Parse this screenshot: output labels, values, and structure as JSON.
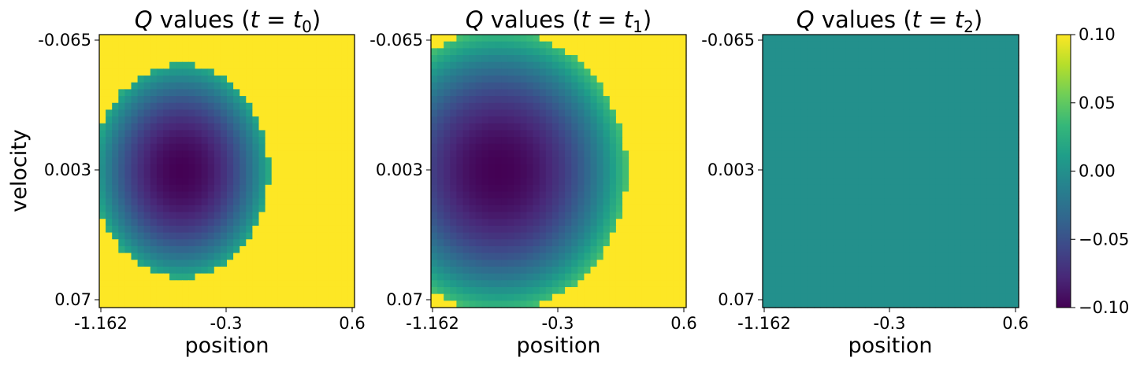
{
  "chart_data": [
    {
      "type": "heatmap",
      "title": {
        "q": "Q",
        "mid": " values (",
        "t": "t",
        "eq": " = ",
        "t2": "t",
        "sub": "0",
        "end": ")"
      },
      "xlabel": "position",
      "ylabel": "velocity",
      "xticks": [
        "-1.162",
        "-0.3",
        "0.6"
      ],
      "yticks": [
        "-0.065",
        "0.003",
        "0.07"
      ],
      "xlim": [
        -1.2,
        0.6
      ],
      "ylim": [
        -0.07,
        0.07
      ],
      "field": {
        "cx": -0.62,
        "cy": 0.0,
        "rx": 0.62,
        "ry": 0.055,
        "min": -0.1,
        "cutoff": 0.022,
        "outside": 0.1
      }
    },
    {
      "type": "heatmap",
      "title": {
        "q": "Q",
        "mid": " values (",
        "t": "t",
        "eq": " = ",
        "t2": "t",
        "sub": "1",
        "end": ")"
      },
      "xlabel": "position",
      "ylabel": "",
      "xticks": [
        "-1.162",
        "-0.3",
        "0.6"
      ],
      "yticks": [
        "-0.065",
        "0.003",
        "0.07"
      ],
      "xlim": [
        -1.2,
        0.6
      ],
      "ylim": [
        -0.07,
        0.07
      ],
      "field": {
        "cx": -0.72,
        "cy": 0.0,
        "rx": 0.9,
        "ry": 0.072,
        "min": -0.1,
        "cutoff": 0.04,
        "outside": 0.1
      }
    },
    {
      "type": "heatmap",
      "title": {
        "q": "Q",
        "mid": " values (",
        "t": "t",
        "eq": " = ",
        "t2": "t",
        "sub": "2",
        "end": ")"
      },
      "xlabel": "position",
      "ylabel": "",
      "xticks": [
        "-1.162",
        "-0.3",
        "0.6"
      ],
      "yticks": [
        "-0.065",
        "0.003",
        "0.07"
      ],
      "xlim": [
        -1.2,
        0.6
      ],
      "ylim": [
        -0.07,
        0.07
      ],
      "constant_value": 0.0
    }
  ],
  "colorbar": {
    "colormap": "viridis",
    "min": -0.1,
    "max": 0.1,
    "ticks": [
      "0.10",
      "0.05",
      "0.00",
      "−0.05",
      "−0.10"
    ],
    "tick_values": [
      0.1,
      0.05,
      0.0,
      -0.05,
      -0.1
    ]
  },
  "colors": {
    "viridis": [
      "#440154",
      "#482878",
      "#3e4989",
      "#31688e",
      "#26828e",
      "#1f9e89",
      "#35b779",
      "#6ece58",
      "#b5de2b",
      "#fde725"
    ]
  }
}
